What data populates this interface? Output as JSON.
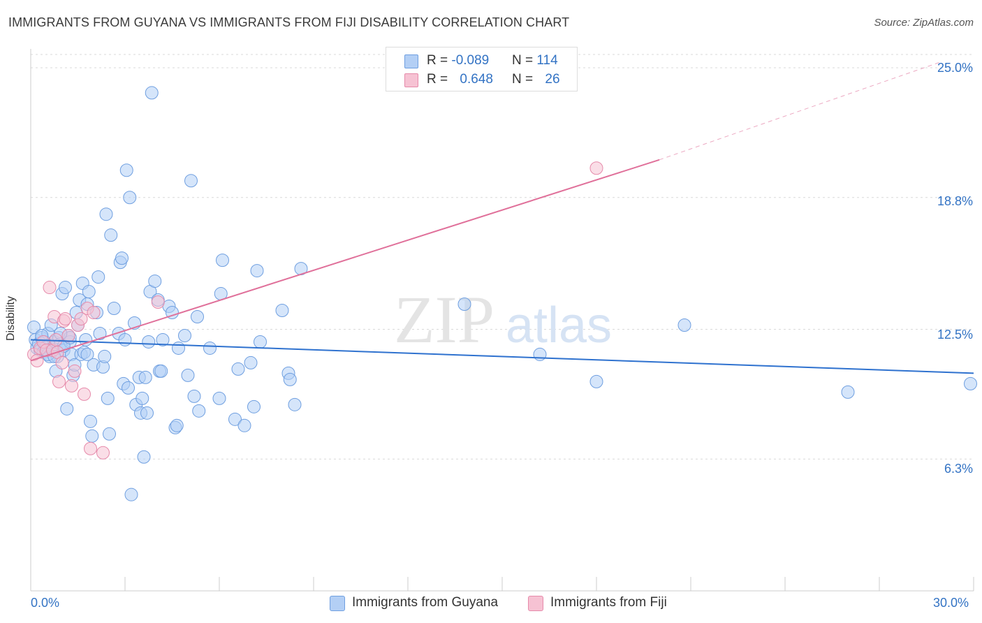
{
  "header": {
    "title": "IMMIGRANTS FROM GUYANA VS IMMIGRANTS FROM FIJI DISABILITY CORRELATION CHART",
    "source": "Source: ZipAtlas.com"
  },
  "watermark": {
    "zip": "ZIP",
    "atlas": "atlas"
  },
  "legend": {
    "guyana": {
      "r_label": "R = ",
      "r_value": "-0.089",
      "n_label": "N = ",
      "n_value": "114"
    },
    "fiji": {
      "r_label": "R = ",
      "r_value": "0.648",
      "n_label": "N = ",
      "n_value": "26"
    }
  },
  "colors": {
    "guyana_fill": "#b3cff5",
    "guyana_stroke": "#6f9fe0",
    "guyana_line": "#2f72cf",
    "fiji_fill": "#f6c2d3",
    "fiji_stroke": "#e68aaa",
    "fiji_line": "#e0709a",
    "tick_text": "#3373c4",
    "grid": "#d9d9d9"
  },
  "chart_data": {
    "type": "scatter",
    "title": "IMMIGRANTS FROM GUYANA VS IMMIGRANTS FROM FIJI DISABILITY CORRELATION CHART",
    "xlabel": "",
    "ylabel": "Disability",
    "xlim": [
      0,
      30
    ],
    "ylim": [
      0,
      25.9
    ],
    "x_tick_labels": [
      {
        "value": 0,
        "label": "0.0%"
      },
      {
        "value": 30,
        "label": "30.0%"
      }
    ],
    "y_tick_labels": [
      {
        "value": 6.3,
        "label": "6.3%"
      },
      {
        "value": 12.5,
        "label": "12.5%"
      },
      {
        "value": 18.8,
        "label": "18.8%"
      },
      {
        "value": 25.0,
        "label": "25.0%"
      }
    ],
    "series": [
      {
        "name": "Immigrants from Guyana",
        "r": -0.089,
        "n": 114,
        "trend": {
          "x": [
            0,
            30
          ],
          "y": [
            12.0,
            10.4
          ]
        },
        "points": [
          [
            0.1,
            12.6
          ],
          [
            0.15,
            12.0
          ],
          [
            0.2,
            11.6
          ],
          [
            0.25,
            11.8
          ],
          [
            0.3,
            11.5
          ],
          [
            0.35,
            12.1
          ],
          [
            0.4,
            11.4
          ],
          [
            0.45,
            11.9
          ],
          [
            0.5,
            11.7
          ],
          [
            0.55,
            12.3
          ],
          [
            0.6,
            11.2
          ],
          [
            0.65,
            12.7
          ],
          [
            0.7,
            11.6
          ],
          [
            0.75,
            11.9
          ],
          [
            0.8,
            10.5
          ],
          [
            0.85,
            11.2
          ],
          [
            0.9,
            12.1
          ],
          [
            0.95,
            11.8
          ],
          [
            1.0,
            14.2
          ],
          [
            1.05,
            11.5
          ],
          [
            1.1,
            14.5
          ],
          [
            1.15,
            8.7
          ],
          [
            1.2,
            12.2
          ],
          [
            1.25,
            11.9
          ],
          [
            1.3,
            11.3
          ],
          [
            1.35,
            10.3
          ],
          [
            1.4,
            10.8
          ],
          [
            1.45,
            13.3
          ],
          [
            1.5,
            12.7
          ],
          [
            1.55,
            13.9
          ],
          [
            1.6,
            11.3
          ],
          [
            1.65,
            14.7
          ],
          [
            1.7,
            11.4
          ],
          [
            1.75,
            12.0
          ],
          [
            1.8,
            13.7
          ],
          [
            1.85,
            14.3
          ],
          [
            1.9,
            8.1
          ],
          [
            1.95,
            7.4
          ],
          [
            2.0,
            10.8
          ],
          [
            2.1,
            13.3
          ],
          [
            2.15,
            15.0
          ],
          [
            2.2,
            12.3
          ],
          [
            2.3,
            10.7
          ],
          [
            2.35,
            11.2
          ],
          [
            2.4,
            18.0
          ],
          [
            2.45,
            9.2
          ],
          [
            2.5,
            7.5
          ],
          [
            2.55,
            17.0
          ],
          [
            2.65,
            13.5
          ],
          [
            2.8,
            12.3
          ],
          [
            2.85,
            15.7
          ],
          [
            2.9,
            15.9
          ],
          [
            2.95,
            9.9
          ],
          [
            3.0,
            12.0
          ],
          [
            3.05,
            20.1
          ],
          [
            3.1,
            9.7
          ],
          [
            3.15,
            18.8
          ],
          [
            3.2,
            4.6
          ],
          [
            3.3,
            12.8
          ],
          [
            3.35,
            8.9
          ],
          [
            3.45,
            10.2
          ],
          [
            3.5,
            8.5
          ],
          [
            3.55,
            9.2
          ],
          [
            3.6,
            6.4
          ],
          [
            3.65,
            10.2
          ],
          [
            3.7,
            8.5
          ],
          [
            3.75,
            11.9
          ],
          [
            3.8,
            14.3
          ],
          [
            3.85,
            23.8
          ],
          [
            3.95,
            14.8
          ],
          [
            4.05,
            13.9
          ],
          [
            4.1,
            10.5
          ],
          [
            4.15,
            10.5
          ],
          [
            4.2,
            12.0
          ],
          [
            4.4,
            13.6
          ],
          [
            4.5,
            13.3
          ],
          [
            4.6,
            7.8
          ],
          [
            4.65,
            7.9
          ],
          [
            4.7,
            11.6
          ],
          [
            4.9,
            12.2
          ],
          [
            5.0,
            10.3
          ],
          [
            5.1,
            19.6
          ],
          [
            5.2,
            9.3
          ],
          [
            5.3,
            13.1
          ],
          [
            5.35,
            8.6
          ],
          [
            5.7,
            11.6
          ],
          [
            6.0,
            9.2
          ],
          [
            6.05,
            14.2
          ],
          [
            6.1,
            15.8
          ],
          [
            6.5,
            8.2
          ],
          [
            6.6,
            10.6
          ],
          [
            6.8,
            7.9
          ],
          [
            7.0,
            10.9
          ],
          [
            7.1,
            8.8
          ],
          [
            7.2,
            15.3
          ],
          [
            7.3,
            11.9
          ],
          [
            8.0,
            13.4
          ],
          [
            8.2,
            10.4
          ],
          [
            8.25,
            10.1
          ],
          [
            8.4,
            8.9
          ],
          [
            8.6,
            15.4
          ],
          [
            13.8,
            13.7
          ],
          [
            16.2,
            11.3
          ],
          [
            18.0,
            10.0
          ],
          [
            20.8,
            12.7
          ],
          [
            26.0,
            9.5
          ],
          [
            29.9,
            9.9
          ],
          [
            0.35,
            12.2
          ],
          [
            0.55,
            11.3
          ],
          [
            1.05,
            11.7
          ],
          [
            1.25,
            12.1
          ],
          [
            0.75,
            11.2
          ],
          [
            0.95,
            12.3
          ],
          [
            1.8,
            11.3
          ]
        ]
      },
      {
        "name": "Immigrants from Fiji",
        "r": 0.648,
        "n": 26,
        "trend": {
          "x": [
            0,
            20.0
          ],
          "y": [
            11.0,
            20.6
          ]
        },
        "trend_dashed_extension": {
          "x": [
            20.0,
            29.0
          ],
          "y": [
            20.6,
            25.3
          ]
        },
        "points": [
          [
            0.1,
            11.3
          ],
          [
            0.2,
            11.0
          ],
          [
            0.3,
            11.6
          ],
          [
            0.4,
            11.9
          ],
          [
            0.5,
            11.5
          ],
          [
            0.6,
            14.5
          ],
          [
            0.7,
            11.5
          ],
          [
            0.75,
            13.1
          ],
          [
            0.8,
            12.0
          ],
          [
            0.85,
            11.4
          ],
          [
            0.9,
            10.0
          ],
          [
            1.0,
            10.9
          ],
          [
            1.05,
            12.9
          ],
          [
            1.1,
            13.0
          ],
          [
            1.2,
            12.2
          ],
          [
            1.3,
            9.8
          ],
          [
            1.4,
            10.5
          ],
          [
            1.5,
            12.7
          ],
          [
            1.6,
            13.0
          ],
          [
            1.7,
            9.4
          ],
          [
            1.8,
            13.5
          ],
          [
            1.9,
            6.8
          ],
          [
            2.0,
            13.3
          ],
          [
            2.3,
            6.6
          ],
          [
            4.05,
            13.8
          ],
          [
            18.0,
            20.2
          ]
        ]
      }
    ]
  },
  "bottom_legend": {
    "guyana_label": "Immigrants from Guyana",
    "fiji_label": "Immigrants from Fiji"
  }
}
